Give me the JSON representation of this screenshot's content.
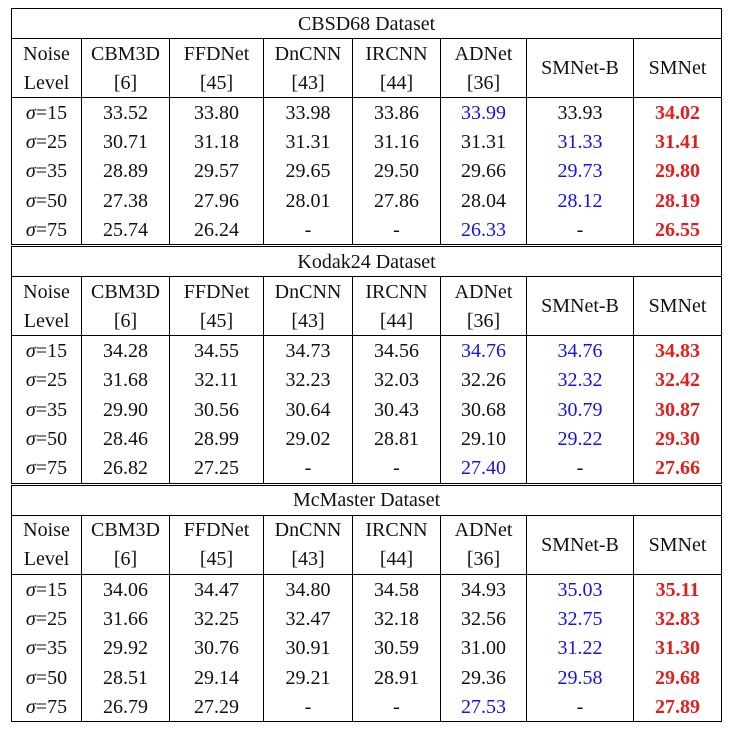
{
  "header": {
    "noise_line1": "Noise",
    "noise_line2": "Level",
    "methods": [
      {
        "line1": "CBM3D",
        "line2": "[6]"
      },
      {
        "line1": "FFDNet",
        "line2": "[45]"
      },
      {
        "line1": "DnCNN",
        "line2": "[43]"
      },
      {
        "line1": "IRCNN",
        "line2": "[44]"
      },
      {
        "line1": "ADNet",
        "line2": "[36]"
      },
      {
        "line1": "SMNet-B",
        "line2": ""
      },
      {
        "line1": "SMNet",
        "line2": ""
      }
    ]
  },
  "sigma_symbol": "σ",
  "colors": {
    "second_best": "#1414e6",
    "best": "#e0201e"
  },
  "datasets": [
    {
      "title": "CBSD68 Dataset",
      "rows": [
        {
          "level": "=15",
          "values": [
            "33.52",
            "33.80",
            "33.98",
            "33.86",
            "33.99",
            "33.93",
            "34.02"
          ],
          "styles": [
            "",
            "",
            "",
            "",
            "blue",
            "",
            "red"
          ]
        },
        {
          "level": "=25",
          "values": [
            "30.71",
            "31.18",
            "31.31",
            "31.16",
            "31.31",
            "31.33",
            "31.41"
          ],
          "styles": [
            "",
            "",
            "",
            "",
            "",
            "blue",
            "red"
          ]
        },
        {
          "level": "=35",
          "values": [
            "28.89",
            "29.57",
            "29.65",
            "29.50",
            "29.66",
            "29.73",
            "29.80"
          ],
          "styles": [
            "",
            "",
            "",
            "",
            "",
            "blue",
            "red"
          ]
        },
        {
          "level": "=50",
          "values": [
            "27.38",
            "27.96",
            "28.01",
            "27.86",
            "28.04",
            "28.12",
            "28.19"
          ],
          "styles": [
            "",
            "",
            "",
            "",
            "",
            "blue",
            "red"
          ]
        },
        {
          "level": "=75",
          "values": [
            "25.74",
            "26.24",
            "-",
            "-",
            "26.33",
            "-",
            "26.55"
          ],
          "styles": [
            "",
            "",
            "",
            "",
            "blue",
            "",
            "red"
          ]
        }
      ]
    },
    {
      "title": "Kodak24 Dataset",
      "rows": [
        {
          "level": "=15",
          "values": [
            "34.28",
            "34.55",
            "34.73",
            "34.56",
            "34.76",
            "34.76",
            "34.83"
          ],
          "styles": [
            "",
            "",
            "",
            "",
            "blue",
            "blue",
            "red"
          ]
        },
        {
          "level": "=25",
          "values": [
            "31.68",
            "32.11",
            "32.23",
            "32.03",
            "32.26",
            "32.32",
            "32.42"
          ],
          "styles": [
            "",
            "",
            "",
            "",
            "",
            "blue",
            "red"
          ]
        },
        {
          "level": "=35",
          "values": [
            "29.90",
            "30.56",
            "30.64",
            "30.43",
            "30.68",
            "30.79",
            "30.87"
          ],
          "styles": [
            "",
            "",
            "",
            "",
            "",
            "blue",
            "red"
          ]
        },
        {
          "level": "=50",
          "values": [
            "28.46",
            "28.99",
            "29.02",
            "28.81",
            "29.10",
            "29.22",
            "29.30"
          ],
          "styles": [
            "",
            "",
            "",
            "",
            "",
            "blue",
            "red"
          ]
        },
        {
          "level": "=75",
          "values": [
            "26.82",
            "27.25",
            "-",
            "-",
            "27.40",
            "-",
            "27.66"
          ],
          "styles": [
            "",
            "",
            "",
            "",
            "blue",
            "",
            "red"
          ]
        }
      ]
    },
    {
      "title": "McMaster Dataset",
      "rows": [
        {
          "level": "=15",
          "values": [
            "34.06",
            "34.47",
            "34.80",
            "34.58",
            "34.93",
            "35.03",
            "35.11"
          ],
          "styles": [
            "",
            "",
            "",
            "",
            "",
            "blue",
            "red"
          ]
        },
        {
          "level": "=25",
          "values": [
            "31.66",
            "32.25",
            "32.47",
            "32.18",
            "32.56",
            "32.75",
            "32.83"
          ],
          "styles": [
            "",
            "",
            "",
            "",
            "",
            "blue",
            "red"
          ]
        },
        {
          "level": "=35",
          "values": [
            "29.92",
            "30.76",
            "30.91",
            "30.59",
            "31.00",
            "31.22",
            "31.30"
          ],
          "styles": [
            "",
            "",
            "",
            "",
            "",
            "blue",
            "red"
          ]
        },
        {
          "level": "=50",
          "values": [
            "28.51",
            "29.14",
            "29.21",
            "28.91",
            "29.36",
            "29.58",
            "29.68"
          ],
          "styles": [
            "",
            "",
            "",
            "",
            "",
            "blue",
            "red"
          ]
        },
        {
          "level": "=75",
          "values": [
            "26.79",
            "27.29",
            "-",
            "-",
            "27.53",
            "-",
            "27.89"
          ],
          "styles": [
            "",
            "",
            "",
            "",
            "blue",
            "",
            "red"
          ]
        }
      ]
    }
  ]
}
